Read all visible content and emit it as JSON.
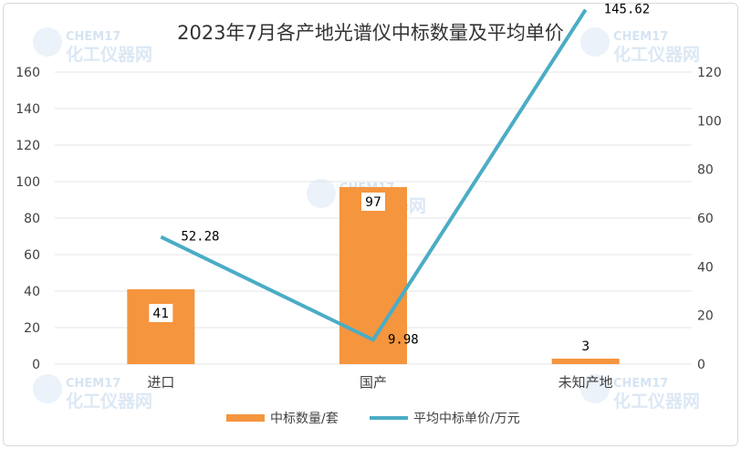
{
  "title": "2023年7月各产地光谱仪中标数量及平均单价",
  "watermark": {
    "top": "CHEM17",
    "bottom": "化工仪器网"
  },
  "colors": {
    "bar": "#F5953E",
    "line": "#4BACC6",
    "axis_text": "#404040",
    "grid": "#e6e6e6"
  },
  "chart_data": {
    "type": "bar",
    "categories": [
      "进口",
      "国产",
      "未知产地"
    ],
    "series": [
      {
        "name": "中标数量/套",
        "type": "bar",
        "axis": "left",
        "values": [
          41,
          97,
          3
        ],
        "labels": [
          "41",
          "97",
          "3"
        ]
      },
      {
        "name": "平均中标单价/万元",
        "type": "line",
        "axis": "right",
        "values": [
          52.28,
          9.98,
          145.62
        ],
        "labels": [
          "52.28",
          "9.98",
          "145.62"
        ]
      }
    ],
    "y_left": {
      "ylim": [
        0,
        160
      ],
      "ticks": [
        "0",
        "20",
        "40",
        "60",
        "80",
        "100",
        "120",
        "140",
        "160"
      ]
    },
    "y_right": {
      "ylim": [
        0,
        120
      ],
      "ticks": [
        "0",
        "20",
        "40",
        "60",
        "80",
        "100",
        "120"
      ]
    },
    "grid": true,
    "legend_position": "bottom"
  }
}
